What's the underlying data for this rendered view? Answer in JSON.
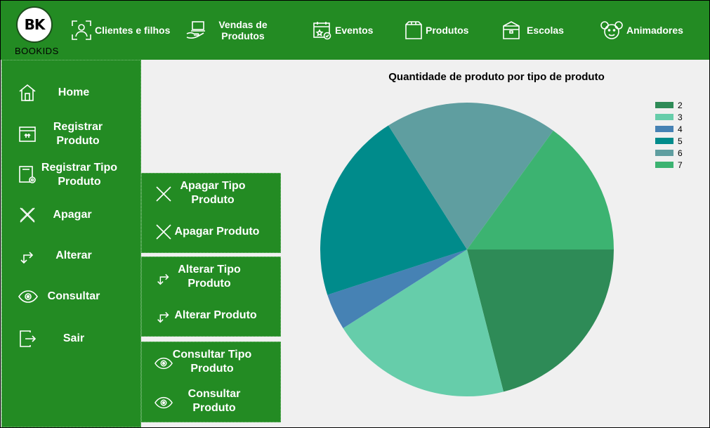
{
  "app": {
    "logo_mark": "BK",
    "logo_caption": "BOOKIDS"
  },
  "topnav": {
    "items": [
      {
        "label": "Clientes e filhos",
        "icon": "scan-user-icon"
      },
      {
        "label": "Vendas de Produtos",
        "icon": "hand-laptop-icon"
      },
      {
        "label": "Eventos",
        "icon": "calendar-star-icon"
      },
      {
        "label": "Produtos",
        "icon": "box-icon"
      },
      {
        "label": "Escolas",
        "icon": "locker-icon"
      },
      {
        "label": "Animadores",
        "icon": "mouse-ears-icon"
      }
    ]
  },
  "sidebar": {
    "items": [
      {
        "label": "Home",
        "icon": "home-icon"
      },
      {
        "label": "Registrar Produto",
        "icon": "package-icon"
      },
      {
        "label": "Registrar Tipo Produto",
        "icon": "device-gear-icon"
      },
      {
        "label": "Apagar",
        "icon": "x-icon"
      },
      {
        "label": "Alterar",
        "icon": "arrows-swap-icon"
      },
      {
        "label": "Consultar",
        "icon": "eye-icon"
      },
      {
        "label": "Sair",
        "icon": "exit-icon"
      }
    ]
  },
  "submenus": {
    "apagar": [
      {
        "label": "Apagar Tipo Produto"
      },
      {
        "label": "Apagar Produto"
      }
    ],
    "alterar": [
      {
        "label": "Alterar Tipo Produto"
      },
      {
        "label": "Alterar Produto"
      }
    ],
    "consultar": [
      {
        "label": "Consultar Tipo Produto"
      },
      {
        "label": "Consultar Produto"
      }
    ]
  },
  "colors": {
    "green": "#238b23",
    "series": [
      "#2e8b57",
      "#66cdaa",
      "#4682b4",
      "#008b8b",
      "#5f9ea0",
      "#3cb371"
    ]
  },
  "chart_data": {
    "type": "pie",
    "title": "Quantidade de produto por tipo de produto",
    "categories": [
      "2",
      "3",
      "4",
      "5",
      "6",
      "7"
    ],
    "values": [
      21,
      20,
      4,
      21,
      19,
      15
    ],
    "start_angle_deg": 90,
    "legend_position": "top-right"
  }
}
